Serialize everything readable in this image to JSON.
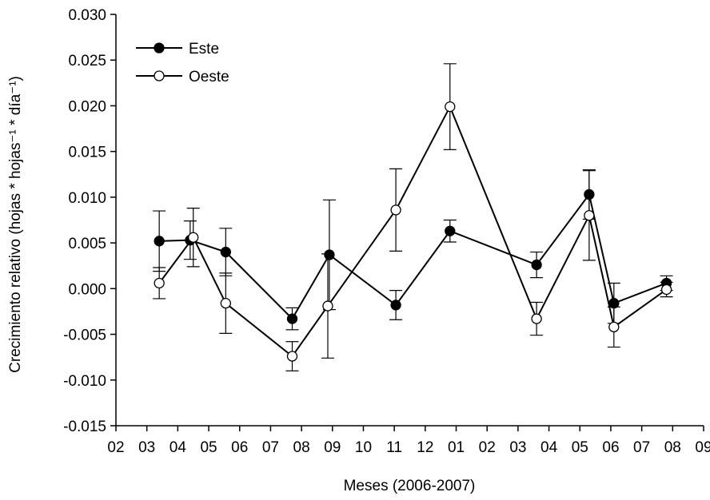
{
  "chart_data": {
    "type": "line",
    "title": "",
    "xlabel": "Meses (2006-2007)",
    "ylabel": "Crecimiento relativo (hojas * hojas⁻¹ * día⁻¹)",
    "ylim": [
      -0.015,
      0.03
    ],
    "yticks": [
      "-0.015",
      "-0.010",
      "-0.005",
      "0.000",
      "0.005",
      "0.010",
      "0.015",
      "0.020",
      "0.025",
      "0.030"
    ],
    "xticks": [
      "02",
      "03",
      "04",
      "05",
      "06",
      "07",
      "08",
      "09",
      "10",
      "11",
      "12",
      "01",
      "02",
      "03",
      "04",
      "05",
      "06",
      "07",
      "08",
      "09"
    ],
    "legend_position": "top-left",
    "grid": false,
    "series": [
      {
        "name": "Este",
        "marker": "filled-circle",
        "x": [
          1.4,
          2.4,
          3.55,
          5.7,
          6.9,
          9.05,
          10.8,
          13.6,
          15.3,
          16.1,
          17.8
        ],
        "values": [
          0.0052,
          0.0053,
          0.004,
          -0.0033,
          0.0037,
          -0.0018,
          0.0063,
          0.0026,
          0.0103,
          -0.0016,
          0.0006
        ],
        "error": [
          0.0033,
          0.0021,
          0.0026,
          0.0012,
          0.006,
          0.0016,
          0.0012,
          0.0014,
          0.0027,
          0.0022,
          0.0008
        ]
      },
      {
        "name": "Oeste",
        "marker": "open-circle",
        "x": [
          1.4,
          2.5,
          3.55,
          5.7,
          6.85,
          9.05,
          10.8,
          13.6,
          15.3,
          16.1,
          17.8
        ],
        "values": [
          0.0006,
          0.0056,
          -0.0016,
          -0.0074,
          -0.0019,
          0.0086,
          0.0199,
          -0.0033,
          0.008,
          -0.0042,
          -0.0001
        ],
        "error": [
          0.0017,
          0.0032,
          0.0033,
          0.0016,
          0.0057,
          0.0045,
          0.0047,
          0.0018,
          0.0049,
          0.0022,
          0.0008
        ]
      }
    ]
  }
}
